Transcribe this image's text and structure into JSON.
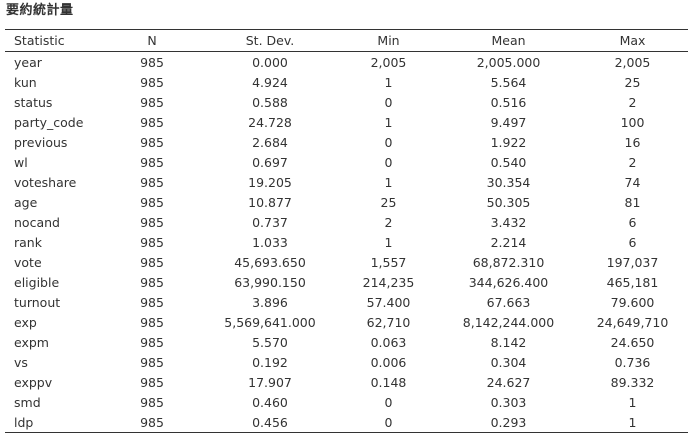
{
  "title": "要約統計量",
  "table": {
    "headers": [
      "Statistic",
      "N",
      "St. Dev.",
      "Min",
      "Mean",
      "Max"
    ],
    "rows": [
      [
        "year",
        "985",
        "0.000",
        "2,005",
        "2,005.000",
        "2,005"
      ],
      [
        "kun",
        "985",
        "4.924",
        "1",
        "5.564",
        "25"
      ],
      [
        "status",
        "985",
        "0.588",
        "0",
        "0.516",
        "2"
      ],
      [
        "party_code",
        "985",
        "24.728",
        "1",
        "9.497",
        "100"
      ],
      [
        "previous",
        "985",
        "2.684",
        "0",
        "1.922",
        "16"
      ],
      [
        "wl",
        "985",
        "0.697",
        "0",
        "0.540",
        "2"
      ],
      [
        "voteshare",
        "985",
        "19.205",
        "1",
        "30.354",
        "74"
      ],
      [
        "age",
        "985",
        "10.877",
        "25",
        "50.305",
        "81"
      ],
      [
        "nocand",
        "985",
        "0.737",
        "2",
        "3.432",
        "6"
      ],
      [
        "rank",
        "985",
        "1.033",
        "1",
        "2.214",
        "6"
      ],
      [
        "vote",
        "985",
        "45,693.650",
        "1,557",
        "68,872.310",
        "197,037"
      ],
      [
        "eligible",
        "985",
        "63,990.150",
        "214,235",
        "344,626.400",
        "465,181"
      ],
      [
        "turnout",
        "985",
        "3.896",
        "57.400",
        "67.663",
        "79.600"
      ],
      [
        "exp",
        "985",
        "5,569,641.000",
        "62,710",
        "8,142,244.000",
        "24,649,710"
      ],
      [
        "expm",
        "985",
        "5.570",
        "0.063",
        "8.142",
        "24.650"
      ],
      [
        "vs",
        "985",
        "0.192",
        "0.006",
        "0.304",
        "0.736"
      ],
      [
        "exppv",
        "985",
        "17.907",
        "0.148",
        "24.627",
        "89.332"
      ],
      [
        "smd",
        "985",
        "0.460",
        "0",
        "0.303",
        "1"
      ],
      [
        "ldp",
        "985",
        "0.456",
        "0",
        "0.293",
        "1"
      ]
    ]
  }
}
